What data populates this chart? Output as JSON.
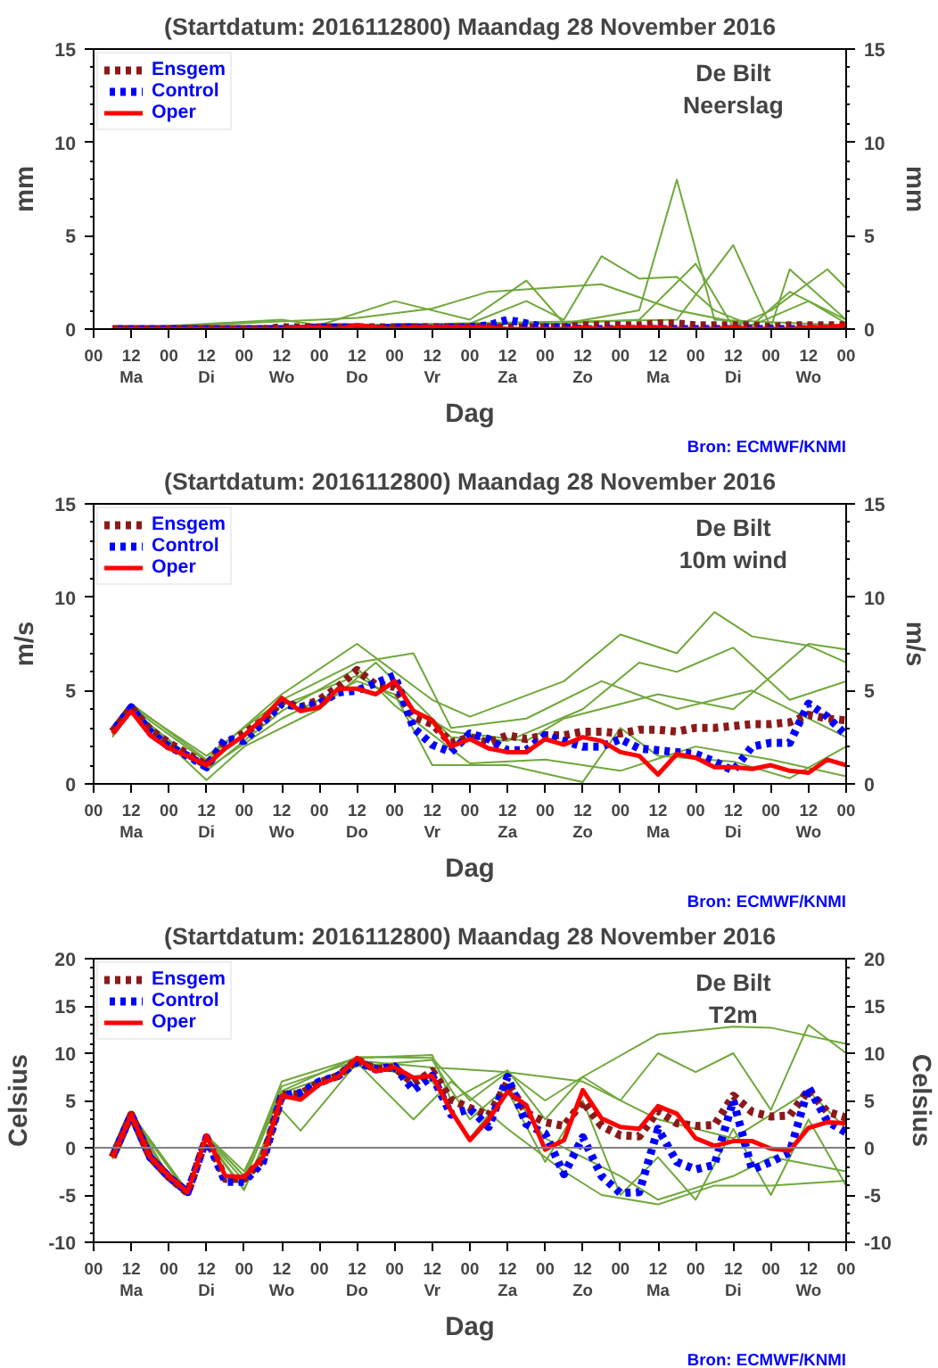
{
  "chart_data": [
    {
      "type": "line",
      "title": "(Startdatum: 2016112800) Maandag 28 November 2016",
      "xlabel": "Dag",
      "ylabel": "mm",
      "y2label": "mm",
      "annotations": [
        "De Bilt\nNeerslag",
        "Bron: ECMWF/KNMI"
      ],
      "legend": "top left",
      "x": [
        "2016-11-28T06:00",
        "2016-11-28T12:00",
        "2016-11-28T18:00",
        "2016-11-29T00:00",
        "2016-11-29T06:00",
        "2016-11-29T12:00",
        "2016-11-29T18:00",
        "2016-11-30T00:00",
        "2016-11-30T06:00",
        "2016-11-30T12:00",
        "2016-11-30T18:00",
        "2016-12-01T00:00",
        "2016-12-01T06:00",
        "2016-12-01T12:00",
        "2016-12-01T18:00",
        "2016-12-02T00:00",
        "2016-12-02T06:00",
        "2016-12-02T12:00",
        "2016-12-02T18:00",
        "2016-12-03T00:00",
        "2016-12-03T06:00",
        "2016-12-03T12:00",
        "2016-12-03T18:00",
        "2016-12-04T00:00",
        "2016-12-04T06:00",
        "2016-12-04T12:00",
        "2016-12-04T18:00",
        "2016-12-05T00:00",
        "2016-12-05T06:00",
        "2016-12-05T12:00",
        "2016-12-05T18:00",
        "2016-12-06T00:00",
        "2016-12-06T06:00",
        "2016-12-06T12:00",
        "2016-12-06T18:00",
        "2016-12-07T00:00",
        "2016-12-07T06:00",
        "2016-12-07T12:00",
        "2016-12-07T18:00",
        "2016-12-08T00:00"
      ],
      "xlim": [
        "2016-11-28T00:00",
        "2016-12-08T00:00"
      ],
      "xticks": [
        {
          "value": "2016-11-28T00:00",
          "label": "00"
        },
        {
          "value": "2016-11-28T12:00",
          "label": "12\nMa"
        },
        {
          "value": "2016-11-29T00:00",
          "label": "00"
        },
        {
          "value": "2016-11-29T12:00",
          "label": "12\nDi"
        },
        {
          "value": "2016-11-30T00:00",
          "label": "00"
        },
        {
          "value": "2016-11-30T12:00",
          "label": "12\nWo"
        },
        {
          "value": "2016-12-01T00:00",
          "label": "00"
        },
        {
          "value": "2016-12-01T12:00",
          "label": "12\nDo"
        },
        {
          "value": "2016-12-02T00:00",
          "label": "00"
        },
        {
          "value": "2016-12-02T12:00",
          "label": "12\nVr"
        },
        {
          "value": "2016-12-03T00:00",
          "label": "00"
        },
        {
          "value": "2016-12-03T12:00",
          "label": "12\nZa"
        },
        {
          "value": "2016-12-04T00:00",
          "label": "00"
        },
        {
          "value": "2016-12-04T12:00",
          "label": "12\nZo"
        },
        {
          "value": "2016-12-05T00:00",
          "label": "00"
        },
        {
          "value": "2016-12-05T12:00",
          "label": "12\nMa"
        },
        {
          "value": "2016-12-06T00:00",
          "label": "00"
        },
        {
          "value": "2016-12-06T12:00",
          "label": "12\nDi"
        },
        {
          "value": "2016-12-07T00:00",
          "label": "00"
        },
        {
          "value": "2016-12-07T12:00",
          "label": "12\nWo"
        },
        {
          "value": "2016-12-08T00:00",
          "label": "00"
        }
      ],
      "ylim": [
        0,
        15
      ],
      "yticks": [
        0,
        {
          "value": 1,
          "label": null
        },
        {
          "value": 2,
          "label": null
        },
        {
          "value": 3,
          "label": null
        },
        {
          "value": 4,
          "label": null
        },
        5,
        {
          "value": 6,
          "label": null
        },
        {
          "value": 7,
          "label": null
        },
        {
          "value": 8,
          "label": null
        },
        {
          "value": 9,
          "label": null
        },
        10,
        {
          "value": 11,
          "label": null
        },
        {
          "value": 12,
          "label": null
        },
        {
          "value": 13,
          "label": null
        },
        {
          "value": 14,
          "label": null
        },
        15
      ],
      "y2lim": [
        0,
        15
      ],
      "y2ticks": [
        0,
        {
          "value": 1,
          "label": null
        },
        {
          "value": 2,
          "label": null
        },
        {
          "value": 3,
          "label": null
        },
        {
          "value": 4,
          "label": null
        },
        5,
        {
          "value": 6,
          "label": null
        },
        {
          "value": 7,
          "label": null
        },
        {
          "value": 8,
          "label": null
        },
        {
          "value": 9,
          "label": null
        },
        10,
        {
          "value": 11,
          "label": null
        },
        {
          "value": 12,
          "label": null
        },
        {
          "value": 13,
          "label": null
        },
        {
          "value": 14,
          "label": null
        },
        15
      ],
      "series": [
        {
          "color": "#6fa83a",
          "x": [
            "2016-11-28T06:00",
            "2016-12-04T06:00",
            "2016-12-05T06:00",
            "2016-12-05T18:00",
            "2016-12-06T06:00",
            "2016-12-08T00:00"
          ],
          "values": [
            0,
            0.3,
            1,
            8,
            0.5,
            0.2
          ]
        },
        {
          "color": "#6fa83a",
          "x": [
            "2016-11-28T06:00",
            "2016-12-03T00:00",
            "2016-12-03T18:00",
            "2016-12-04T06:00",
            "2016-12-04T18:00",
            "2016-12-05T06:00",
            "2016-12-05T18:00",
            "2016-12-06T06:00",
            "2016-12-06T18:00",
            "2016-12-07T06:00",
            "2016-12-08T00:00"
          ],
          "values": [
            0,
            0.3,
            1.5,
            0.5,
            3.9,
            2.7,
            2.8,
            1,
            0.2,
            2,
            0.5
          ]
        },
        {
          "color": "#6fa83a",
          "x": [
            "2016-11-28T06:00",
            "2016-11-30T12:00",
            "2016-12-01T00:00",
            "2016-12-02T00:00",
            "2016-12-03T00:00",
            "2016-12-03T18:00",
            "2016-12-04T06:00",
            "2016-12-05T06:00",
            "2016-12-06T00:00",
            "2016-12-06T12:00",
            "2016-12-07T00:00",
            "2016-12-07T18:00",
            "2016-12-08T00:00"
          ],
          "values": [
            0,
            0.5,
            0.2,
            1.5,
            0.5,
            2.6,
            0.3,
            0.5,
            3.5,
            0.1,
            1,
            3.2,
            2.2
          ]
        },
        {
          "color": "#6fa83a",
          "x": [
            "2016-11-28T06:00",
            "2016-12-05T18:00",
            "2016-12-06T12:00",
            "2016-12-07T00:00",
            "2016-12-07T06:00",
            "2016-12-08T00:00"
          ],
          "values": [
            0,
            0.5,
            4.5,
            0.1,
            3.2,
            0.5
          ]
        },
        {
          "color": "#6fa83a",
          "x": [
            "2016-11-28T06:00",
            "2016-12-01T12:00",
            "2016-12-02T12:00",
            "2016-12-03T06:00",
            "2016-12-04T18:00",
            "2016-12-05T18:00",
            "2016-12-06T18:00",
            "2016-12-07T12:00",
            "2016-12-08T00:00"
          ],
          "values": [
            0,
            0.6,
            1.1,
            2,
            2.4,
            1,
            0.2,
            1.5,
            0.3
          ]
        },
        {
          "name": "Ensgem",
          "color": "#8b1a1a",
          "line_style": "dotted",
          "values": [
            0,
            0,
            0,
            0,
            0,
            0,
            0,
            0,
            0,
            0.1,
            0.1,
            0.1,
            0.1,
            0.1,
            0.1,
            0.1,
            0.1,
            0.1,
            0.1,
            0.1,
            0.1,
            0.1,
            0.1,
            0.1,
            0.1,
            0.2,
            0.2,
            0.2,
            0.2,
            0.3,
            0.3,
            0.2,
            0.2,
            0.2,
            0.2,
            0.1,
            0.2,
            0.2,
            0.2,
            0.2
          ]
        },
        {
          "name": "Control",
          "color": "#0000ff",
          "line_style": "dotted",
          "values": [
            0,
            0,
            0,
            0,
            0,
            0,
            0,
            0,
            0,
            0,
            0,
            0.1,
            0.1,
            0.1,
            0,
            0.1,
            0.1,
            0,
            0.1,
            0.1,
            0.2,
            0.5,
            0.3,
            0.1,
            0.1,
            0,
            0,
            0,
            0,
            0,
            0,
            0,
            0,
            0,
            0,
            0,
            0,
            0,
            0,
            0
          ]
        },
        {
          "name": "Oper",
          "color": "#ff0000",
          "line_style": "solid",
          "values": [
            0,
            0,
            0,
            0,
            0,
            0,
            0,
            0,
            0,
            0,
            0.1,
            0.1,
            0,
            0.2,
            0.1,
            0,
            0.1,
            0.1,
            0.1,
            0.1,
            0.1,
            0,
            0,
            0,
            0,
            0.1,
            0,
            0.1,
            0.1,
            0.1,
            0,
            0,
            0,
            0.1,
            0,
            0,
            0,
            0.1,
            0.1,
            0.2
          ]
        }
      ]
    },
    {
      "type": "line",
      "title": "(Startdatum: 2016112800) Maandag 28 November 2016",
      "xlabel": "Dag",
      "ylabel": "m/s",
      "y2label": "m/s",
      "annotations": [
        "De Bilt\n10m wind",
        "Bron: ECMWF/KNMI"
      ],
      "legend": "top left",
      "x": [
        "2016-11-28T06:00",
        "2016-11-28T12:00",
        "2016-11-28T18:00",
        "2016-11-29T00:00",
        "2016-11-29T06:00",
        "2016-11-29T12:00",
        "2016-11-29T18:00",
        "2016-11-30T00:00",
        "2016-11-30T06:00",
        "2016-11-30T12:00",
        "2016-11-30T18:00",
        "2016-12-01T00:00",
        "2016-12-01T06:00",
        "2016-12-01T12:00",
        "2016-12-01T18:00",
        "2016-12-02T00:00",
        "2016-12-02T06:00",
        "2016-12-02T12:00",
        "2016-12-02T18:00",
        "2016-12-03T00:00",
        "2016-12-03T06:00",
        "2016-12-03T12:00",
        "2016-12-03T18:00",
        "2016-12-04T00:00",
        "2016-12-04T06:00",
        "2016-12-04T12:00",
        "2016-12-04T18:00",
        "2016-12-05T00:00",
        "2016-12-05T06:00",
        "2016-12-05T12:00",
        "2016-12-05T18:00",
        "2016-12-06T00:00",
        "2016-12-06T06:00",
        "2016-12-06T12:00",
        "2016-12-06T18:00",
        "2016-12-07T00:00",
        "2016-12-07T06:00",
        "2016-12-07T12:00",
        "2016-12-07T18:00",
        "2016-12-08T00:00"
      ],
      "xlim": [
        "2016-11-28T00:00",
        "2016-12-08T00:00"
      ],
      "xticks": [
        {
          "value": "2016-11-28T00:00",
          "label": "00"
        },
        {
          "value": "2016-11-28T12:00",
          "label": "12\nMa"
        },
        {
          "value": "2016-11-29T00:00",
          "label": "00"
        },
        {
          "value": "2016-11-29T12:00",
          "label": "12\nDi"
        },
        {
          "value": "2016-11-30T00:00",
          "label": "00"
        },
        {
          "value": "2016-11-30T12:00",
          "label": "12\nWo"
        },
        {
          "value": "2016-12-01T00:00",
          "label": "00"
        },
        {
          "value": "2016-12-01T12:00",
          "label": "12\nDo"
        },
        {
          "value": "2016-12-02T00:00",
          "label": "00"
        },
        {
          "value": "2016-12-02T12:00",
          "label": "12\nVr"
        },
        {
          "value": "2016-12-03T00:00",
          "label": "00"
        },
        {
          "value": "2016-12-03T12:00",
          "label": "12\nZa"
        },
        {
          "value": "2016-12-04T00:00",
          "label": "00"
        },
        {
          "value": "2016-12-04T12:00",
          "label": "12\nZo"
        },
        {
          "value": "2016-12-05T00:00",
          "label": "00"
        },
        {
          "value": "2016-12-05T12:00",
          "label": "12\nMa"
        },
        {
          "value": "2016-12-06T00:00",
          "label": "00"
        },
        {
          "value": "2016-12-06T12:00",
          "label": "12\nDi"
        },
        {
          "value": "2016-12-07T00:00",
          "label": "00"
        },
        {
          "value": "2016-12-07T12:00",
          "label": "12\nWo"
        },
        {
          "value": "2016-12-08T00:00",
          "label": "00"
        }
      ],
      "ylim": [
        0,
        15
      ],
      "yticks": [
        0,
        {
          "value": 1,
          "label": null
        },
        {
          "value": 2,
          "label": null
        },
        {
          "value": 3,
          "label": null
        },
        {
          "value": 4,
          "label": null
        },
        5,
        {
          "value": 6,
          "label": null
        },
        {
          "value": 7,
          "label": null
        },
        {
          "value": 8,
          "label": null
        },
        {
          "value": 9,
          "label": null
        },
        10,
        {
          "value": 11,
          "label": null
        },
        {
          "value": 12,
          "label": null
        },
        {
          "value": 13,
          "label": null
        },
        {
          "value": 14,
          "label": null
        },
        15
      ],
      "y2lim": [
        0,
        15
      ],
      "y2ticks": [
        0,
        {
          "value": 1,
          "label": null
        },
        {
          "value": 2,
          "label": null
        },
        {
          "value": 3,
          "label": null
        },
        {
          "value": 4,
          "label": null
        },
        5,
        {
          "value": 6,
          "label": null
        },
        {
          "value": 7,
          "label": null
        },
        {
          "value": 8,
          "label": null
        },
        {
          "value": 9,
          "label": null
        },
        10,
        {
          "value": 11,
          "label": null
        },
        {
          "value": 12,
          "label": null
        },
        {
          "value": 13,
          "label": null
        },
        {
          "value": 14,
          "label": null
        },
        15
      ],
      "series": [
        {
          "color": "#6fa83a",
          "x": [
            "2016-11-28T06:00",
            "2016-11-28T12:00",
            "2016-11-29T12:00",
            "2016-11-30T12:00",
            "2016-12-01T12:00",
            "2016-12-02T00:00",
            "2016-12-02T12:00",
            "2016-12-03T00:00",
            "2016-12-04T06:00",
            "2016-12-05T00:00",
            "2016-12-05T18:00",
            "2016-12-06T06:00",
            "2016-12-06T18:00",
            "2016-12-07T12:00",
            "2016-12-08T00:00"
          ],
          "values": [
            3,
            4.3,
            1.3,
            4.8,
            7.5,
            6,
            4.5,
            3.6,
            5.5,
            8,
            7,
            9.2,
            7.9,
            7.4,
            6.5
          ]
        },
        {
          "color": "#6fa83a",
          "x": [
            "2016-11-28T06:00",
            "2016-11-28T12:00",
            "2016-11-29T12:00",
            "2016-11-30T00:00",
            "2016-12-01T00:00",
            "2016-12-01T18:00",
            "2016-12-02T06:00",
            "2016-12-02T18:00",
            "2016-12-03T12:00",
            "2016-12-04T12:00",
            "2016-12-05T06:00",
            "2016-12-05T18:00",
            "2016-12-06T12:00",
            "2016-12-07T06:00",
            "2016-12-08T00:00"
          ],
          "values": [
            2.5,
            4,
            0.2,
            2,
            4,
            6.5,
            4.5,
            2.5,
            2.3,
            4,
            6.5,
            6,
            7.3,
            4.5,
            5.5
          ]
        },
        {
          "color": "#6fa83a",
          "x": [
            "2016-11-28T06:00",
            "2016-11-28T12:00",
            "2016-11-29T12:00",
            "2016-11-30T12:00",
            "2016-12-01T12:00",
            "2016-12-02T00:00",
            "2016-12-02T12:00",
            "2016-12-03T12:00",
            "2016-12-04T12:00",
            "2016-12-05T00:00",
            "2016-12-05T12:00",
            "2016-12-06T12:00",
            "2016-12-07T06:00",
            "2016-12-08T00:00"
          ],
          "values": [
            2.6,
            3.9,
            0.8,
            3.5,
            5.5,
            4.8,
            1,
            1,
            0.1,
            3,
            1.5,
            1.2,
            0.3,
            2
          ]
        },
        {
          "color": "#6fa83a",
          "x": [
            "2016-11-28T06:00",
            "2016-11-28T12:00",
            "2016-11-29T12:00",
            "2016-11-30T12:00",
            "2016-12-01T12:00",
            "2016-12-02T06:00",
            "2016-12-02T18:00",
            "2016-12-03T18:00",
            "2016-12-04T18:00",
            "2016-12-05T18:00",
            "2016-12-06T18:00",
            "2016-12-07T18:00",
            "2016-12-08T00:00"
          ],
          "values": [
            2.9,
            4.2,
            1.5,
            4.5,
            6.5,
            7,
            3,
            3.5,
            5.5,
            4,
            5,
            3,
            2.5
          ]
        },
        {
          "color": "#6fa83a",
          "x": [
            "2016-11-28T06:00",
            "2016-11-28T12:00",
            "2016-11-29T12:00",
            "2016-11-30T12:00",
            "2016-12-01T12:00",
            "2016-12-02T00:00",
            "2016-12-03T00:00",
            "2016-12-04T00:00",
            "2016-12-05T00:00",
            "2016-12-06T00:00",
            "2016-12-07T00:00",
            "2016-12-08T00:00"
          ],
          "values": [
            2.7,
            4,
            0.7,
            3.9,
            6.2,
            4.2,
            1.1,
            1.3,
            0.7,
            2,
            1.3,
            0.4
          ]
        },
        {
          "color": "#6fa83a",
          "x": [
            "2016-11-28T06:00",
            "2016-11-28T12:00",
            "2016-11-29T12:00",
            "2016-11-30T12:00",
            "2016-12-01T12:00",
            "2016-12-02T00:00",
            "2016-12-02T18:00",
            "2016-12-03T18:00",
            "2016-12-04T06:00",
            "2016-12-05T12:00",
            "2016-12-06T12:00",
            "2016-12-07T12:00",
            "2016-12-08T00:00"
          ],
          "values": [
            2.7,
            4.1,
            1.2,
            4.2,
            5.8,
            4.6,
            2.8,
            2.3,
            3.5,
            4.8,
            4,
            7.5,
            7.2
          ]
        },
        {
          "name": "Ensgem",
          "color": "#8b1a1a",
          "line_style": "dotted",
          "values": [
            2.8,
            4.1,
            2.9,
            2.2,
            1.6,
            1,
            2.2,
            2.7,
            3.4,
            4.4,
            4.1,
            4.5,
            5.2,
            6.1,
            5.3,
            5.2,
            3.6,
            3.2,
            2.2,
            2.5,
            2.2,
            2.6,
            2.4,
            2.6,
            2.6,
            2.8,
            2.8,
            2.7,
            2.9,
            2.9,
            2.8,
            3,
            3,
            3.1,
            3.2,
            3.2,
            3.3,
            3.7,
            3.5,
            3.4
          ]
        },
        {
          "name": "Control",
          "color": "#0000ff",
          "line_style": "dotted",
          "values": [
            2.8,
            4.1,
            2.8,
            2,
            1.5,
            0.9,
            2.4,
            2.3,
            3.3,
            4.3,
            4.1,
            4.3,
            4.9,
            5,
            5.4,
            5.8,
            3,
            2.1,
            1.7,
            2.7,
            2.4,
            1.8,
            1.8,
            2.6,
            2.3,
            2,
            2,
            2.4,
            1.9,
            1.8,
            1.7,
            1.6,
            1.2,
            0.7,
            2,
            2.2,
            2.2,
            4.3,
            3.6,
            2.6
          ]
        },
        {
          "name": "Oper",
          "color": "#ff0000",
          "line_style": "solid",
          "values": [
            2.7,
            3.9,
            2.6,
            1.9,
            1.5,
            1,
            1.9,
            2.6,
            3.5,
            4.6,
            3.9,
            4.1,
            5.1,
            5.1,
            4.8,
            5.5,
            3.9,
            3.4,
            2,
            2.4,
            1.9,
            1.7,
            1.7,
            2.4,
            2.1,
            2.5,
            2.3,
            1.7,
            1.5,
            0.5,
            1.6,
            1.4,
            0.9,
            0.9,
            0.8,
            1,
            0.7,
            0.6,
            1.3,
            1
          ]
        }
      ]
    },
    {
      "type": "line",
      "title": "(Startdatum: 2016112800) Maandag 28 November 2016",
      "xlabel": "Dag",
      "ylabel": "Celsius",
      "y2label": "Celsius",
      "annotations": [
        "De Bilt\nT2m",
        "Bron: ECMWF/KNMI"
      ],
      "legend": "top left",
      "ref_lines": [
        {
          "axis": "y",
          "value": 0,
          "color": "#808080"
        }
      ],
      "x": [
        "2016-11-28T06:00",
        "2016-11-28T12:00",
        "2016-11-28T18:00",
        "2016-11-29T00:00",
        "2016-11-29T06:00",
        "2016-11-29T12:00",
        "2016-11-29T18:00",
        "2016-11-30T00:00",
        "2016-11-30T06:00",
        "2016-11-30T12:00",
        "2016-11-30T18:00",
        "2016-12-01T00:00",
        "2016-12-01T06:00",
        "2016-12-01T12:00",
        "2016-12-01T18:00",
        "2016-12-02T00:00",
        "2016-12-02T06:00",
        "2016-12-02T12:00",
        "2016-12-02T18:00",
        "2016-12-03T00:00",
        "2016-12-03T06:00",
        "2016-12-03T12:00",
        "2016-12-03T18:00",
        "2016-12-04T00:00",
        "2016-12-04T06:00",
        "2016-12-04T12:00",
        "2016-12-04T18:00",
        "2016-12-05T00:00",
        "2016-12-05T06:00",
        "2016-12-05T12:00",
        "2016-12-05T18:00",
        "2016-12-06T00:00",
        "2016-12-06T06:00",
        "2016-12-06T12:00",
        "2016-12-06T18:00",
        "2016-12-07T00:00",
        "2016-12-07T06:00",
        "2016-12-07T12:00",
        "2016-12-07T18:00",
        "2016-12-08T00:00"
      ],
      "xlim": [
        "2016-11-28T00:00",
        "2016-12-08T00:00"
      ],
      "xticks": [
        {
          "value": "2016-11-28T00:00",
          "label": "00"
        },
        {
          "value": "2016-11-28T12:00",
          "label": "12\nMa"
        },
        {
          "value": "2016-11-29T00:00",
          "label": "00"
        },
        {
          "value": "2016-11-29T12:00",
          "label": "12\nDi"
        },
        {
          "value": "2016-11-30T00:00",
          "label": "00"
        },
        {
          "value": "2016-11-30T12:00",
          "label": "12\nWo"
        },
        {
          "value": "2016-12-01T00:00",
          "label": "00"
        },
        {
          "value": "2016-12-01T12:00",
          "label": "12\nDo"
        },
        {
          "value": "2016-12-02T00:00",
          "label": "00"
        },
        {
          "value": "2016-12-02T12:00",
          "label": "12\nVr"
        },
        {
          "value": "2016-12-03T00:00",
          "label": "00"
        },
        {
          "value": "2016-12-03T12:00",
          "label": "12\nZa"
        },
        {
          "value": "2016-12-04T00:00",
          "label": "00"
        },
        {
          "value": "2016-12-04T12:00",
          "label": "12\nZo"
        },
        {
          "value": "2016-12-05T00:00",
          "label": "00"
        },
        {
          "value": "2016-12-05T12:00",
          "label": "12\nMa"
        },
        {
          "value": "2016-12-06T00:00",
          "label": "00"
        },
        {
          "value": "2016-12-06T12:00",
          "label": "12\nDi"
        },
        {
          "value": "2016-12-07T00:00",
          "label": "00"
        },
        {
          "value": "2016-12-07T12:00",
          "label": "12\nWo"
        },
        {
          "value": "2016-12-08T00:00",
          "label": "00"
        }
      ],
      "ylim": [
        -10,
        20
      ],
      "yticks": [
        -10,
        {
          "value": -9,
          "label": null
        },
        {
          "value": -8,
          "label": null
        },
        {
          "value": -7,
          "label": null
        },
        {
          "value": -6,
          "label": null
        },
        -5,
        {
          "value": -4,
          "label": null
        },
        {
          "value": -3,
          "label": null
        },
        {
          "value": -2,
          "label": null
        },
        {
          "value": -1,
          "label": null
        },
        0,
        {
          "value": 1,
          "label": null
        },
        {
          "value": 2,
          "label": null
        },
        {
          "value": 3,
          "label": null
        },
        {
          "value": 4,
          "label": null
        },
        5,
        {
          "value": 6,
          "label": null
        },
        {
          "value": 7,
          "label": null
        },
        {
          "value": 8,
          "label": null
        },
        {
          "value": 9,
          "label": null
        },
        10,
        {
          "value": 11,
          "label": null
        },
        {
          "value": 12,
          "label": null
        },
        {
          "value": 13,
          "label": null
        },
        {
          "value": 14,
          "label": null
        },
        15,
        {
          "value": 16,
          "label": null
        },
        {
          "value": 17,
          "label": null
        },
        {
          "value": 18,
          "label": null
        },
        {
          "value": 19,
          "label": null
        },
        20
      ],
      "y2lim": [
        -10,
        20
      ],
      "y2ticks": [
        -10,
        {
          "value": -9,
          "label": null
        },
        {
          "value": -8,
          "label": null
        },
        {
          "value": -7,
          "label": null
        },
        {
          "value": -6,
          "label": null
        },
        -5,
        {
          "value": -4,
          "label": null
        },
        {
          "value": -3,
          "label": null
        },
        {
          "value": -2,
          "label": null
        },
        {
          "value": -1,
          "label": null
        },
        0,
        {
          "value": 1,
          "label": null
        },
        {
          "value": 2,
          "label": null
        },
        {
          "value": 3,
          "label": null
        },
        {
          "value": 4,
          "label": null
        },
        5,
        {
          "value": 6,
          "label": null
        },
        {
          "value": 7,
          "label": null
        },
        {
          "value": 8,
          "label": null
        },
        {
          "value": 9,
          "label": null
        },
        10,
        {
          "value": 11,
          "label": null
        },
        {
          "value": 12,
          "label": null
        },
        {
          "value": 13,
          "label": null
        },
        {
          "value": 14,
          "label": null
        },
        15,
        {
          "value": 16,
          "label": null
        },
        {
          "value": 17,
          "label": null
        },
        {
          "value": 18,
          "label": null
        },
        {
          "value": 19,
          "label": null
        },
        20
      ],
      "series": [
        {
          "color": "#6fa83a",
          "x": [
            "2016-11-28T06:00",
            "2016-11-28T12:00",
            "2016-11-29T00:00",
            "2016-11-29T06:00",
            "2016-11-29T12:00",
            "2016-11-30T00:00",
            "2016-11-30T12:00",
            "2016-12-01T12:00",
            "2016-12-02T12:00",
            "2016-12-03T00:00",
            "2016-12-03T12:00",
            "2016-12-04T00:00",
            "2016-12-04T12:00",
            "2016-12-05T12:00",
            "2016-12-06T12:00",
            "2016-12-07T00:00",
            "2016-12-08T00:00"
          ],
          "values": [
            -1,
            3.6,
            -3,
            -4.8,
            1,
            -3.5,
            6,
            9.6,
            9.5,
            5,
            8,
            5,
            7.5,
            12,
            12.8,
            12.7,
            11
          ]
        },
        {
          "color": "#6fa83a",
          "x": [
            "2016-11-28T06:00",
            "2016-11-28T12:00",
            "2016-11-29T00:00",
            "2016-11-29T06:00",
            "2016-11-29T12:00",
            "2016-11-30T00:00",
            "2016-11-30T12:00",
            "2016-12-01T12:00",
            "2016-12-02T12:00",
            "2016-12-03T00:00",
            "2016-12-03T12:00",
            "2016-12-04T00:00",
            "2016-12-04T12:00",
            "2016-12-05T00:00",
            "2016-12-05T12:00",
            "2016-12-06T00:00",
            "2016-12-06T12:00",
            "2016-12-07T00:00",
            "2016-12-07T12:00",
            "2016-12-08T00:00"
          ],
          "values": [
            -1.2,
            3.4,
            -3.2,
            -5,
            0.8,
            -4.5,
            5,
            9,
            7,
            1,
            6,
            -1.5,
            5,
            -5,
            -1,
            -5.5,
            2,
            -5,
            3,
            -4
          ]
        },
        {
          "color": "#6fa83a",
          "x": [
            "2016-11-28T06:00",
            "2016-11-28T12:00",
            "2016-11-29T06:00",
            "2016-11-29T12:00",
            "2016-11-30T00:00",
            "2016-11-30T12:00",
            "2016-12-01T12:00",
            "2016-12-02T12:00",
            "2016-12-02T18:00",
            "2016-12-03T12:00",
            "2016-12-04T00:00",
            "2016-12-04T12:00",
            "2016-12-05T00:00",
            "2016-12-05T12:00",
            "2016-12-06T00:00",
            "2016-12-06T12:00",
            "2016-12-07T00:00",
            "2016-12-07T12:00",
            "2016-12-08T00:00"
          ],
          "values": [
            -1,
            3.6,
            -4.7,
            1.2,
            -3,
            7,
            9.5,
            9.8,
            5,
            8.2,
            3,
            7.5,
            5,
            10,
            8,
            10,
            4,
            13,
            10
          ]
        },
        {
          "color": "#6fa83a",
          "x": [
            "2016-11-28T06:00",
            "2016-11-28T12:00",
            "2016-11-29T06:00",
            "2016-11-29T12:00",
            "2016-11-30T00:00",
            "2016-11-30T12:00",
            "2016-11-30T18:00",
            "2016-12-01T12:00",
            "2016-12-02T06:00",
            "2016-12-02T18:00",
            "2016-12-03T12:00",
            "2016-12-04T06:00",
            "2016-12-04T18:00",
            "2016-12-05T12:00",
            "2016-12-06T06:00",
            "2016-12-07T00:00",
            "2016-12-08T00:00"
          ],
          "values": [
            -1,
            3.5,
            -4.8,
            1,
            -4.4,
            4,
            1.8,
            9,
            3,
            7,
            2,
            -2.5,
            -5,
            -6,
            -4,
            -4,
            -3.5
          ]
        },
        {
          "color": "#6fa83a",
          "x": [
            "2016-11-28T06:00",
            "2016-11-28T12:00",
            "2016-11-29T06:00",
            "2016-11-29T12:00",
            "2016-11-30T00:00",
            "2016-11-30T12:00",
            "2016-12-01T12:00",
            "2016-12-02T12:00",
            "2016-12-03T12:00",
            "2016-12-04T12:00",
            "2016-12-05T12:00",
            "2016-12-06T12:00",
            "2016-12-07T12:00",
            "2016-12-08T00:00"
          ],
          "values": [
            -1.1,
            3.4,
            -4.9,
            1.2,
            -3,
            6.5,
            9.2,
            8.5,
            8,
            7,
            3,
            1,
            6,
            2
          ]
        },
        {
          "color": "#6fa83a",
          "x": [
            "2016-11-28T06:00",
            "2016-11-28T12:00",
            "2016-11-29T06:00",
            "2016-11-29T12:00",
            "2016-11-30T00:00",
            "2016-11-30T12:00",
            "2016-12-01T12:00",
            "2016-12-02T12:00",
            "2016-12-03T00:00",
            "2016-12-03T12:00",
            "2016-12-04T00:00",
            "2016-12-05T00:00",
            "2016-12-05T12:00",
            "2016-12-06T12:00",
            "2016-12-07T00:00",
            "2016-12-08T00:00"
          ],
          "values": [
            -1,
            3.6,
            -4.6,
            1.3,
            -2.5,
            5.8,
            8.6,
            9.3,
            3,
            6.5,
            1,
            -3,
            -5.5,
            -3,
            -1,
            -2.5
          ]
        },
        {
          "name": "Ensgem",
          "color": "#8b1a1a",
          "line_style": "dotted",
          "values": [
            -1,
            3.5,
            -1,
            -3.1,
            -4.8,
            1.1,
            -3.3,
            -3.3,
            -1.2,
            5.6,
            5.7,
            6.9,
            7.6,
            9.3,
            8.3,
            8.5,
            6.8,
            8.1,
            5.1,
            4.2,
            3.4,
            6.9,
            3.7,
            2.7,
            2.3,
            4.9,
            2.3,
            1.3,
            1.2,
            3.9,
            2.6,
            2.3,
            2.4,
            5.5,
            3.8,
            3.3,
            3.4,
            6.1,
            3.8,
            3.2
          ]
        },
        {
          "name": "Control",
          "color": "#0000ff",
          "line_style": "dotted",
          "values": [
            -1,
            3.5,
            -1,
            -3.1,
            -4.7,
            1,
            -3.6,
            -3.6,
            -1.5,
            5.5,
            5.8,
            7,
            7.6,
            9.1,
            8.3,
            8.6,
            6.1,
            7.6,
            3.5,
            4.1,
            2.2,
            7.5,
            2.5,
            1.5,
            -2.8,
            1.1,
            -3,
            -4.8,
            -4.7,
            2,
            -1.5,
            -2.3,
            -1.8,
            5,
            -2.3,
            -1.5,
            -0.5,
            6.4,
            2.8,
            1.6
          ]
        },
        {
          "name": "Oper",
          "color": "#ff0000",
          "line_style": "solid",
          "values": [
            -1,
            3.5,
            -1,
            -3,
            -4.7,
            1.3,
            -3,
            -3.1,
            -1,
            5.5,
            5.1,
            6.7,
            7.5,
            9.5,
            8.1,
            8.5,
            7.4,
            7.6,
            3.9,
            0.8,
            3,
            5.9,
            4.5,
            -0.2,
            0.8,
            6.1,
            3.1,
            2.2,
            2,
            4.4,
            3.6,
            1,
            0.2,
            0.7,
            0.7,
            -0.1,
            -0.3,
            2.1,
            2.7,
            2.6
          ]
        }
      ]
    }
  ]
}
